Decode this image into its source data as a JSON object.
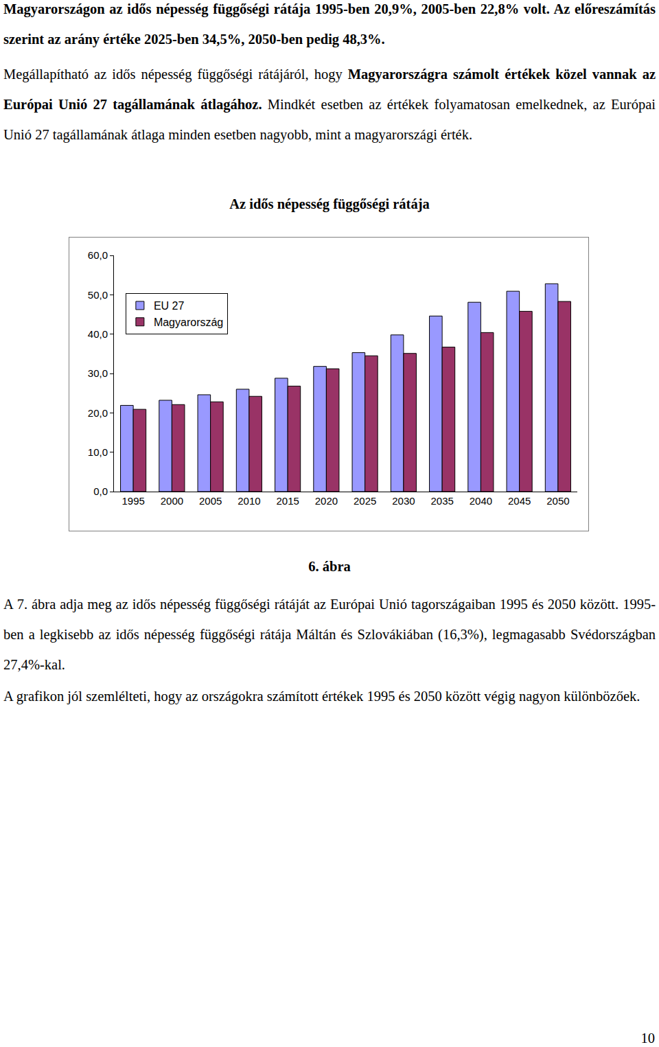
{
  "text_before": [
    [
      {
        "text": "Magyarországon az idős népesség függőségi rátája 1995-ben 20,9%, 2005-ben 22,8% volt. Az előreszámítás szerint az arány értéke 2025-ben 34,5%, 2050-ben pedig 48,3%.",
        "bold": true
      }
    ],
    [
      {
        "text": "Megállapítható az idős népesség függőségi rátájáról, hogy ",
        "bold": false
      },
      {
        "text": "Magyarországra számolt értékek közel vannak az Európai Unió 27 tagállamának átlagához.",
        "bold": true
      },
      {
        "text": " Mindkét esetben az értékek folyamatosan emelkednek, az Európai Unió 27 tagállamának átlaga minden esetben nagyobb, mint a magyarországi érték.",
        "bold": false
      }
    ]
  ],
  "chart_data": {
    "type": "bar",
    "title": "Az idős népesség függőségi rátája",
    "categories": [
      "1995",
      "2000",
      "2005",
      "2010",
      "2015",
      "2020",
      "2025",
      "2030",
      "2035",
      "2040",
      "2045",
      "2050"
    ],
    "series": [
      {
        "name": "EU 27",
        "color": "#9999ff",
        "values": [
          21.9,
          23.2,
          24.6,
          26.0,
          28.8,
          31.8,
          35.3,
          39.8,
          44.6,
          48.1,
          50.9,
          52.8
        ]
      },
      {
        "name": "Magyarország",
        "color": "#993366",
        "values": [
          20.9,
          22.1,
          22.8,
          24.2,
          26.8,
          31.2,
          34.5,
          35.1,
          36.7,
          40.4,
          45.8,
          48.3
        ]
      }
    ],
    "ylim": [
      0,
      60
    ],
    "yticks": [
      {
        "value": 0,
        "label": "0,0"
      },
      {
        "value": 10,
        "label": "10,0"
      },
      {
        "value": 20,
        "label": "20,0"
      },
      {
        "value": 30,
        "label": "30,0"
      },
      {
        "value": 40,
        "label": "40,0"
      },
      {
        "value": 50,
        "label": "50,0"
      },
      {
        "value": 60,
        "label": "60,0"
      }
    ],
    "grid": false,
    "legend": "upper left"
  },
  "caption": "6. ábra",
  "text_after": [
    [
      {
        "text": "A 7. ábra adja meg az idős népesség függőségi rátáját az Európai Unió tagországaiban 1995 és 2050 között. 1995-ben a legkisebb az idős népesség függőségi rátája Máltán és Szlovákiában (16,3%), legmagasabb Svédországban 27,4%-kal.",
        "bold": false
      }
    ],
    [
      {
        "text": "A grafikon jól szemlélteti, hogy az országokra számított értékek 1995 és 2050 között végig nagyon különbözőek.",
        "bold": false
      }
    ]
  ],
  "page_number": "10"
}
